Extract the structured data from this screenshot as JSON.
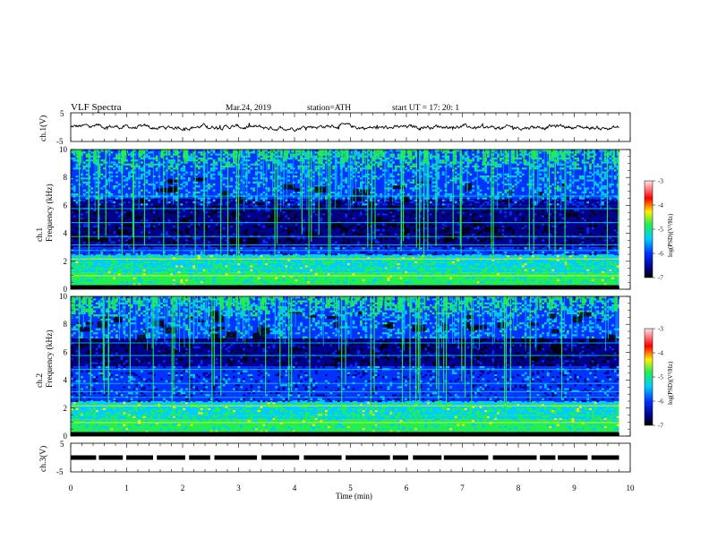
{
  "header": {
    "title": "VLF  Spectra",
    "date": "Mar.24, 2019",
    "station": "station=ATH",
    "start": "start  UT  =    17: 20: 1"
  },
  "chart_data": [
    {
      "type": "line",
      "panel": "ch1",
      "ylabel": "ch.1(V)",
      "ylim": [
        -5,
        5
      ],
      "yticks": [
        "5",
        "-5"
      ],
      "x_unit": "min",
      "xlim": [
        0,
        10
      ],
      "data_extent_min": 9.8,
      "mean_value": 0,
      "amplitude_range": [
        -1.5,
        1.5
      ]
    },
    {
      "type": "heatmap",
      "panel": "ch1-spectrogram",
      "ylabel": "ch.1\nFrequency  (kHz)",
      "ylim": [
        0,
        10
      ],
      "yticks": [
        "0",
        "2",
        "4",
        "6",
        "8",
        "10"
      ],
      "xlim": [
        0,
        10
      ],
      "data_extent_min": 9.8,
      "colorbar": {
        "label": "log(PSD)(V²/Hz)",
        "range": [
          -7,
          -3
        ],
        "ticks": [
          "-3",
          "-4",
          "-5",
          "-6",
          "-7"
        ]
      },
      "strong_band_khz": [
        0,
        2.5
      ],
      "quiet_band_khz": [
        3,
        6
      ],
      "bursty_band_khz": [
        6.5,
        10
      ],
      "notable_lines_khz": [
        0.4,
        1.0,
        1.5,
        2.2,
        2.8,
        3.2,
        3.8,
        4.8,
        5.8,
        6.7
      ]
    },
    {
      "type": "heatmap",
      "panel": "ch2-spectrogram",
      "ylabel": "ch.2\nFrequency  (kHz)",
      "ylim": [
        0,
        10
      ],
      "yticks": [
        "0",
        "2",
        "4",
        "6",
        "8",
        "10"
      ],
      "xlim": [
        0,
        10
      ],
      "data_extent_min": 9.8,
      "colorbar": {
        "label": "log(PSD)(V²/Hz)",
        "range": [
          -7,
          -3
        ],
        "ticks": [
          "-3",
          "-4",
          "-5",
          "-6",
          "-7"
        ]
      },
      "strong_band_khz": [
        0,
        2.5
      ],
      "quiet_band_khz": [
        5,
        7
      ],
      "bursty_band_khz": [
        7,
        10
      ],
      "notable_lines_khz": [
        0.4,
        1.0,
        1.5,
        2.2,
        2.8,
        3.2,
        3.8,
        4.8,
        5.8,
        6.7
      ]
    },
    {
      "type": "line",
      "panel": "ch3",
      "ylabel": "ch.3(V)",
      "ylim": [
        -5,
        5
      ],
      "yticks": [
        "5",
        "-5"
      ],
      "xlim": [
        0,
        10
      ],
      "data_extent_min": 9.8,
      "level_v": 0,
      "xlabel": "Time  (min)",
      "xticks": [
        "0",
        "1",
        "2",
        "3",
        "4",
        "5",
        "6",
        "7",
        "8",
        "9",
        "10"
      ]
    }
  ],
  "colors": {
    "black": "#000000",
    "navy": "#000088",
    "blue": "#0033ff",
    "cyan": "#00ccff",
    "green": "#22ee55",
    "yellow": "#ffee00",
    "red": "#ff0000",
    "pink": "#ffcccc"
  }
}
